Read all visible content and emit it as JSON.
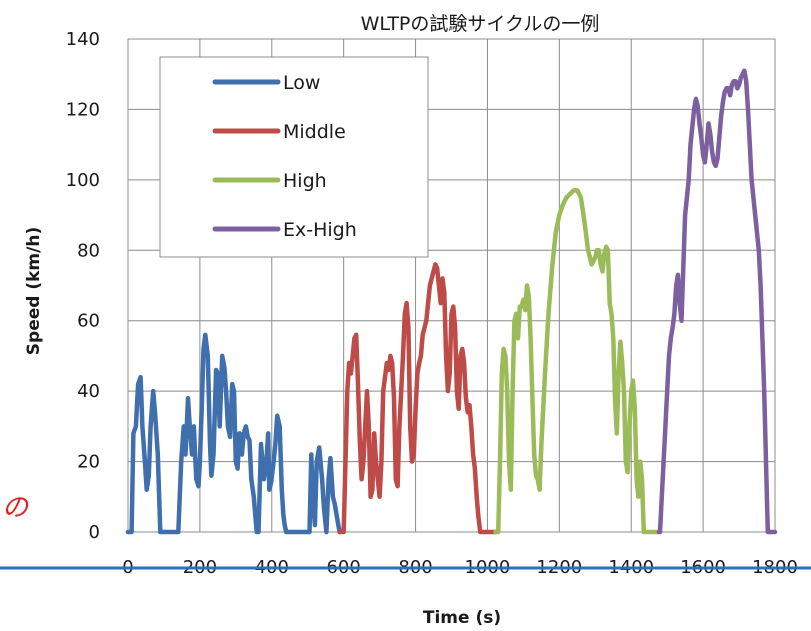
{
  "chart_data": {
    "type": "line",
    "title": "WLTPの試験サイクルの一例",
    "xlabel": "Time (s)",
    "ylabel": "Speed (km/h)",
    "xlim": [
      0,
      1800
    ],
    "ylim": [
      0,
      140
    ],
    "xticks": [
      0,
      200,
      400,
      600,
      800,
      1000,
      1200,
      1400,
      1600,
      1800
    ],
    "yticks": [
      0,
      20,
      40,
      60,
      80,
      100,
      120,
      140
    ],
    "grid": true,
    "legend_placement": "top-left",
    "series": [
      {
        "name": "Low",
        "color": "#3f6fad",
        "x": [
          0,
          10,
          15,
          22,
          28,
          35,
          40,
          47,
          52,
          58,
          63,
          70,
          75,
          83,
          90,
          95,
          98,
          100,
          105,
          120,
          140,
          148,
          155,
          160,
          167,
          172,
          178,
          183,
          190,
          196,
          200,
          205,
          210,
          215,
          222,
          228,
          232,
          238,
          245,
          250,
          255,
          262,
          268,
          273,
          278,
          284,
          290,
          295,
          300,
          305,
          310,
          317,
          322,
          328,
          333,
          338,
          343,
          350,
          358,
          363,
          370,
          378,
          385,
          390,
          393,
          398,
          405,
          410,
          415,
          422,
          428,
          432,
          436,
          440,
          445,
          452,
          470,
          480,
          505,
          510,
          514,
          520,
          525,
          532,
          540,
          545,
          552,
          558,
          563,
          570,
          575,
          585,
          589
        ],
        "y": [
          0,
          0,
          28,
          30,
          42,
          44,
          30,
          20,
          12,
          16,
          30,
          40,
          34,
          22,
          0,
          0,
          0,
          0,
          0,
          0,
          0,
          20,
          30,
          22,
          38,
          30,
          22,
          30,
          15,
          13,
          20,
          35,
          52,
          56,
          50,
          25,
          16,
          22,
          46,
          45,
          30,
          50,
          47,
          40,
          30,
          27,
          42,
          40,
          20,
          18,
          28,
          22,
          28,
          30,
          27,
          26,
          15,
          10,
          0,
          0,
          25,
          15,
          20,
          28,
          12,
          14,
          20,
          25,
          33,
          30,
          12,
          5,
          2,
          0,
          0,
          0,
          0,
          0,
          0,
          22,
          10,
          2,
          20,
          24,
          15,
          7,
          0,
          15,
          21,
          10,
          8,
          2,
          0
        ]
      },
      {
        "name": "Middle",
        "color": "#be4b48",
        "x": [
          589,
          600,
          610,
          615,
          620,
          625,
          630,
          635,
          640,
          645,
          650,
          655,
          660,
          665,
          670,
          675,
          680,
          685,
          690,
          695,
          700,
          705,
          710,
          715,
          720,
          725,
          730,
          735,
          740,
          745,
          750,
          755,
          760,
          765,
          770,
          775,
          780,
          785,
          790,
          795,
          800,
          805,
          810,
          815,
          820,
          825,
          830,
          835,
          840,
          845,
          850,
          855,
          860,
          865,
          870,
          875,
          880,
          885,
          890,
          895,
          900,
          905,
          910,
          915,
          920,
          925,
          930,
          935,
          940,
          945,
          950,
          955,
          960,
          965,
          970,
          975,
          980,
          985,
          990,
          995,
          1000,
          1022
        ],
        "y": [
          0,
          0,
          40,
          48,
          45,
          50,
          55,
          56,
          42,
          26,
          15,
          20,
          30,
          40,
          30,
          10,
          12,
          28,
          20,
          15,
          10,
          20,
          40,
          44,
          48,
          46,
          50,
          48,
          38,
          15,
          13,
          30,
          40,
          50,
          62,
          65,
          58,
          30,
          20,
          22,
          35,
          45,
          48,
          50,
          56,
          58,
          60,
          65,
          70,
          72,
          74,
          76,
          75,
          70,
          65,
          72,
          68,
          50,
          40,
          45,
          62,
          64,
          58,
          40,
          35,
          50,
          52,
          48,
          38,
          34,
          36,
          30,
          22,
          18,
          10,
          4,
          0,
          0,
          0,
          0,
          0,
          0
        ]
      },
      {
        "name": "High",
        "color": "#9bbb59",
        "x": [
          1022,
          1030,
          1035,
          1040,
          1045,
          1050,
          1055,
          1060,
          1065,
          1070,
          1075,
          1080,
          1085,
          1090,
          1095,
          1100,
          1105,
          1110,
          1115,
          1120,
          1125,
          1130,
          1135,
          1140,
          1145,
          1150,
          1160,
          1170,
          1180,
          1190,
          1200,
          1210,
          1220,
          1230,
          1240,
          1250,
          1260,
          1270,
          1280,
          1290,
          1300,
          1305,
          1310,
          1315,
          1320,
          1325,
          1330,
          1335,
          1340,
          1345,
          1350,
          1355,
          1360,
          1365,
          1370,
          1375,
          1380,
          1385,
          1390,
          1395,
          1400,
          1405,
          1410,
          1415,
          1420,
          1425,
          1430,
          1435,
          1440,
          1445,
          1450,
          1455,
          1460,
          1470,
          1477
        ],
        "y": [
          0,
          0,
          20,
          45,
          52,
          50,
          40,
          20,
          12,
          40,
          60,
          62,
          55,
          64,
          64,
          66,
          63,
          70,
          67,
          55,
          38,
          22,
          16,
          15,
          12,
          25,
          45,
          62,
          75,
          85,
          90,
          93,
          95,
          96,
          97,
          97,
          95,
          88,
          80,
          76,
          78,
          80,
          80,
          76,
          74,
          79,
          81,
          80,
          65,
          62,
          55,
          38,
          28,
          45,
          54,
          48,
          40,
          20,
          17,
          30,
          40,
          43,
          35,
          15,
          10,
          20,
          15,
          0,
          0,
          0,
          0,
          0,
          0,
          0,
          0
        ]
      },
      {
        "name": "Ex-High",
        "color": "#7d60a0",
        "x": [
          1477,
          1480,
          1485,
          1490,
          1495,
          1500,
          1505,
          1510,
          1515,
          1520,
          1525,
          1530,
          1535,
          1540,
          1545,
          1550,
          1555,
          1560,
          1565,
          1570,
          1575,
          1580,
          1585,
          1590,
          1595,
          1600,
          1605,
          1610,
          1615,
          1620,
          1625,
          1630,
          1635,
          1640,
          1645,
          1650,
          1655,
          1660,
          1665,
          1670,
          1675,
          1680,
          1685,
          1690,
          1695,
          1700,
          1705,
          1710,
          1715,
          1720,
          1725,
          1730,
          1735,
          1740,
          1745,
          1750,
          1755,
          1760,
          1765,
          1770,
          1775,
          1780,
          1800
        ],
        "y": [
          0,
          0,
          10,
          20,
          30,
          40,
          50,
          55,
          58,
          62,
          70,
          73,
          65,
          60,
          75,
          90,
          95,
          100,
          110,
          115,
          120,
          123,
          121,
          116,
          112,
          107,
          105,
          110,
          116,
          113,
          108,
          105,
          104,
          106,
          112,
          118,
          122,
          125,
          126,
          126,
          124,
          127,
          128,
          128,
          126,
          127,
          129,
          130,
          131,
          128,
          120,
          110,
          100,
          95,
          90,
          85,
          80,
          70,
          55,
          40,
          20,
          0,
          0
        ]
      }
    ]
  },
  "stray_glyph": "の"
}
